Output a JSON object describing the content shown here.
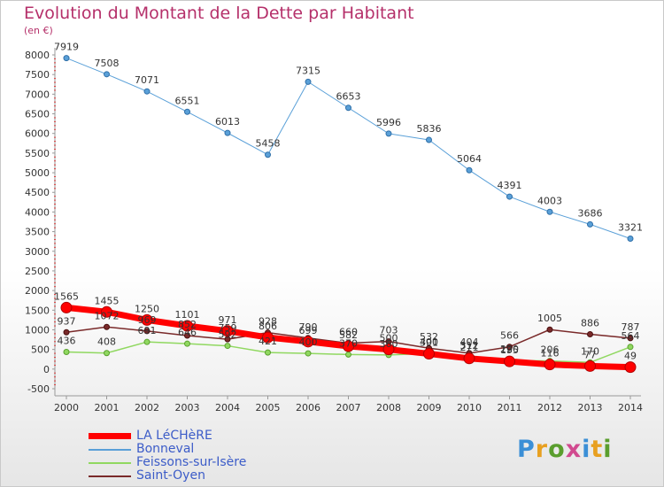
{
  "header": {
    "title": "Evolution du Montant de la Dette par Habitant",
    "unit": "(en €)"
  },
  "logo": {
    "text": "Proxiti",
    "colors": [
      "#3b8fd6",
      "#e8a020",
      "#5a9e2e",
      "#d14a8f",
      "#3b8fd6",
      "#e8a020",
      "#5a9e2e"
    ]
  },
  "chart_data": {
    "type": "line",
    "title": "Evolution du Montant de la Dette par Habitant",
    "ylabel": "(en €)",
    "xlabel": "",
    "x": [
      "2000",
      "2001",
      "2002",
      "2003",
      "2004",
      "2005",
      "2006",
      "2007",
      "2008",
      "2009",
      "2010",
      "2011",
      "2012",
      "2013",
      "2014"
    ],
    "yticks": [
      "-500",
      "0",
      "500",
      "1000",
      "1500",
      "2000",
      "2500",
      "3000",
      "3500",
      "4000",
      "4500",
      "5000",
      "5500",
      "6000",
      "6500",
      "7000",
      "7500",
      "8000"
    ],
    "ylim": [
      -500,
      8000
    ],
    "grid": false,
    "legend_position": "bottom-left",
    "series": [
      {
        "name": "LA LéCHèRE",
        "color": "#ff0000",
        "values": [
          1565,
          1455,
          1250,
          1101,
          971,
          806,
          699,
          582,
          500,
          391,
          271,
          195,
          116,
          77,
          49
        ]
      },
      {
        "name": "Bonneval",
        "color": "#5aa0d8",
        "values": [
          7919,
          7508,
          7071,
          6551,
          6013,
          5458,
          7315,
          6653,
          5996,
          5836,
          5064,
          4391,
          4003,
          3686,
          3321
        ]
      },
      {
        "name": "Feissons-sur-Isère",
        "color": "#90d860",
        "values": [
          436,
          408,
          691,
          646,
          592,
          421,
          400,
          370,
          360,
          400,
          312,
          220,
          206,
          170,
          564
        ]
      },
      {
        "name": "Saint-Oyen",
        "color": "#7a2a2a",
        "values": [
          937,
          1072,
          969,
          852,
          759,
          928,
          790,
          660,
          703,
          532,
          404,
          566,
          1005,
          886,
          787
        ]
      }
    ]
  }
}
